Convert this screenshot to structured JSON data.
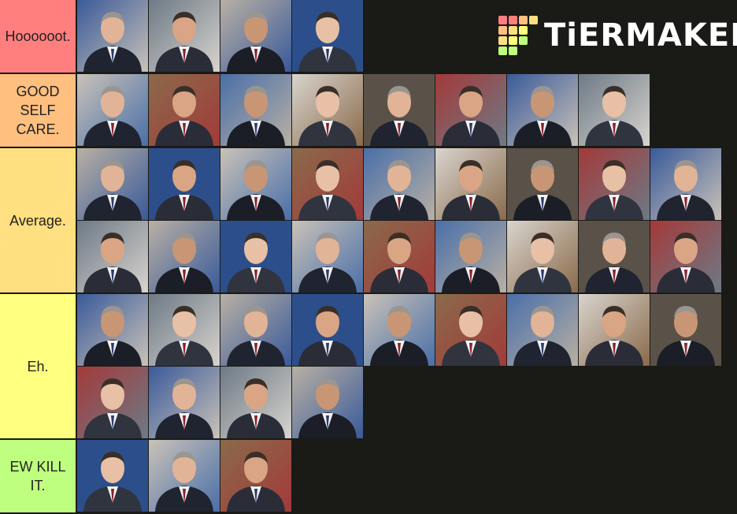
{
  "logo": "TiERMAKER",
  "tiers": [
    {
      "label": "Hoooooot.",
      "color": "#ff7f7f"
    },
    {
      "label": "GOOD SELF CARE.",
      "color": "#ffbf7f"
    },
    {
      "label": "Average.",
      "color": "#ffdf7f"
    },
    {
      "label": "Eh.",
      "color": "#ffff7f"
    },
    {
      "label": "EW KILL IT.",
      "color": "#bfff7f"
    }
  ]
}
